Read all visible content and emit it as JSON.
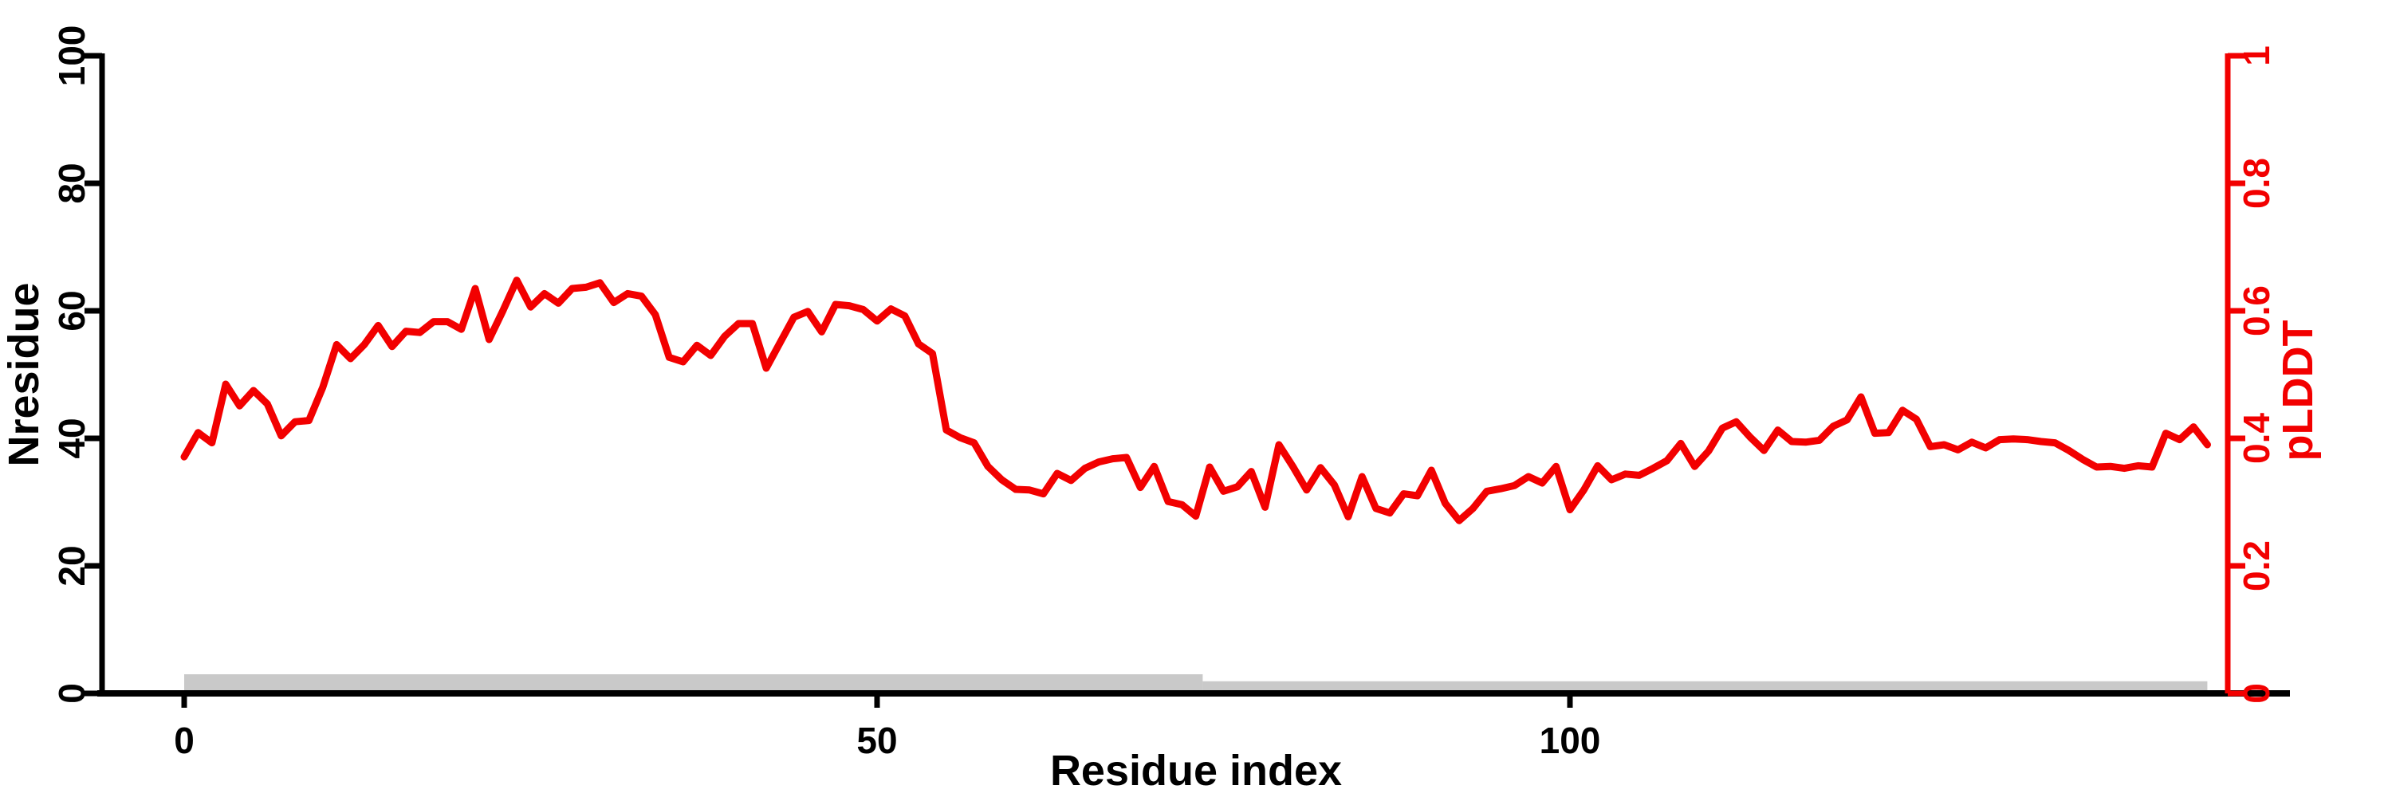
{
  "chart_data": {
    "type": "line",
    "title": "",
    "xlabel": "Residue index",
    "ylabel_left": "Nresidue",
    "ylabel_right": "pLDDT",
    "x_ticks": [
      0,
      50,
      100
    ],
    "x_tick_labels": [
      "0",
      "50",
      "100"
    ],
    "xlim": [
      -6,
      147.5
    ],
    "y_left_ticks": [
      0,
      20,
      40,
      60,
      80,
      100
    ],
    "y_left_tick_labels": [
      "0",
      "20",
      "40",
      "60",
      "80",
      "100"
    ],
    "y_left_lim": [
      0,
      100
    ],
    "y_right_ticks": [
      0,
      0.2,
      0.4,
      0.6,
      0.8,
      1
    ],
    "y_right_tick_labels": [
      "0",
      "0.2",
      "0.4",
      "0.6",
      "0.8",
      "1"
    ],
    "y_right_lim": [
      0,
      1
    ],
    "grid": "off",
    "legend": "none",
    "series": [
      {
        "name": "pLDDT",
        "axis": "right",
        "x_start": 0,
        "x_step": 1,
        "values": [
          0.371,
          0.409,
          0.393,
          0.485,
          0.451,
          0.475,
          0.454,
          0.404,
          0.426,
          0.428,
          0.48,
          0.547,
          0.525,
          0.547,
          0.577,
          0.544,
          0.568,
          0.566,
          0.583,
          0.583,
          0.571,
          0.635,
          0.555,
          0.6,
          0.648,
          0.606,
          0.627,
          0.612,
          0.635,
          0.637,
          0.644,
          0.613,
          0.627,
          0.623,
          0.594,
          0.527,
          0.52,
          0.546,
          0.53,
          0.56,
          0.58,
          0.58,
          0.51,
          0.55,
          0.59,
          0.599,
          0.567,
          0.61,
          0.608,
          0.602,
          0.584,
          0.603,
          0.592,
          0.548,
          0.533,
          0.413,
          0.401,
          0.393,
          0.356,
          0.335,
          0.32,
          0.319,
          0.313,
          0.345,
          0.334,
          0.353,
          0.363,
          0.368,
          0.37,
          0.323,
          0.356,
          0.301,
          0.296,
          0.278,
          0.355,
          0.317,
          0.324,
          0.348,
          0.292,
          0.39,
          0.356,
          0.319,
          0.354,
          0.327,
          0.277,
          0.34,
          0.29,
          0.283,
          0.313,
          0.31,
          0.35,
          0.298,
          0.271,
          0.29,
          0.317,
          0.321,
          0.326,
          0.34,
          0.33,
          0.356,
          0.288,
          0.319,
          0.357,
          0.335,
          0.344,
          0.342,
          0.353,
          0.365,
          0.392,
          0.356,
          0.38,
          0.416,
          0.426,
          0.402,
          0.381,
          0.413,
          0.395,
          0.394,
          0.397,
          0.419,
          0.429,
          0.465,
          0.408,
          0.409,
          0.444,
          0.43,
          0.387,
          0.39,
          0.382,
          0.394,
          0.385,
          0.398,
          0.399,
          0.398,
          0.395,
          0.393,
          0.381,
          0.367,
          0.355,
          0.356,
          0.353,
          0.357,
          0.355,
          0.408,
          0.398,
          0.418,
          0.39
        ]
      }
    ],
    "coverage_bars": [
      {
        "start": 0,
        "end": 73.5,
        "height": 0.03
      },
      {
        "start": 73.5,
        "end": 146,
        "height": 0.019
      }
    ],
    "colors": {
      "line": "#f20000",
      "right_axis": "#f20000",
      "left_axis": "#000000",
      "coverage_bar": "#c9c9c9",
      "background": "#ffffff"
    }
  }
}
